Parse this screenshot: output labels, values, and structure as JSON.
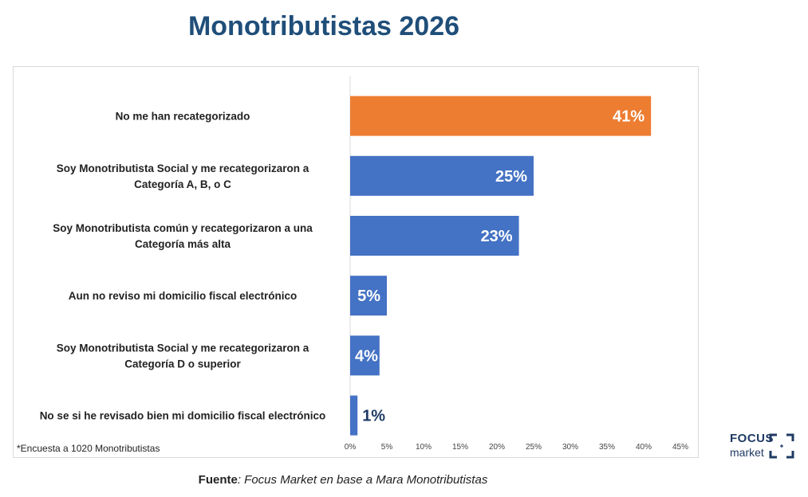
{
  "title": "Monotributistas 2026",
  "note": "*Encuesta a 1020 Monotributistas",
  "source": {
    "label": "Fuente",
    "text": ": Focus Market en base a Mara Monotributistas"
  },
  "logo": {
    "line1": "FOCUS",
    "line2": "market"
  },
  "colors": {
    "highlight": "#ed7d31",
    "primary": "#4472c4",
    "title": "#1f4e79"
  },
  "chart_data": {
    "type": "bar",
    "orientation": "horizontal",
    "title": "Monotributistas 2026",
    "categories": [
      [
        "No me han recategorizado"
      ],
      [
        "Soy Monotributista Social y me recategorizaron a",
        "Categoría A, B, o C"
      ],
      [
        "Soy Monotributista común y  recategorizaron a  una",
        "Categoría más alta"
      ],
      [
        "Aun no reviso mi domicilio fiscal electrónico"
      ],
      [
        "Soy Monotributista Social y me recategorizaron a",
        "Categoría D o superior"
      ],
      [
        "No se si he revisado bien mi domicilio fiscal electrónico"
      ]
    ],
    "values": [
      41,
      25,
      23,
      5,
      4,
      1
    ],
    "data_labels": [
      "41%",
      "25%",
      "23%",
      "5%",
      "4%",
      "1%"
    ],
    "highlight_index": 0,
    "xlim": [
      0,
      45
    ],
    "xticks": [
      "0%",
      "5%",
      "10%",
      "15%",
      "20%",
      "25%",
      "30%",
      "35%",
      "40%",
      "45%"
    ],
    "grid": false,
    "legend": "none"
  }
}
